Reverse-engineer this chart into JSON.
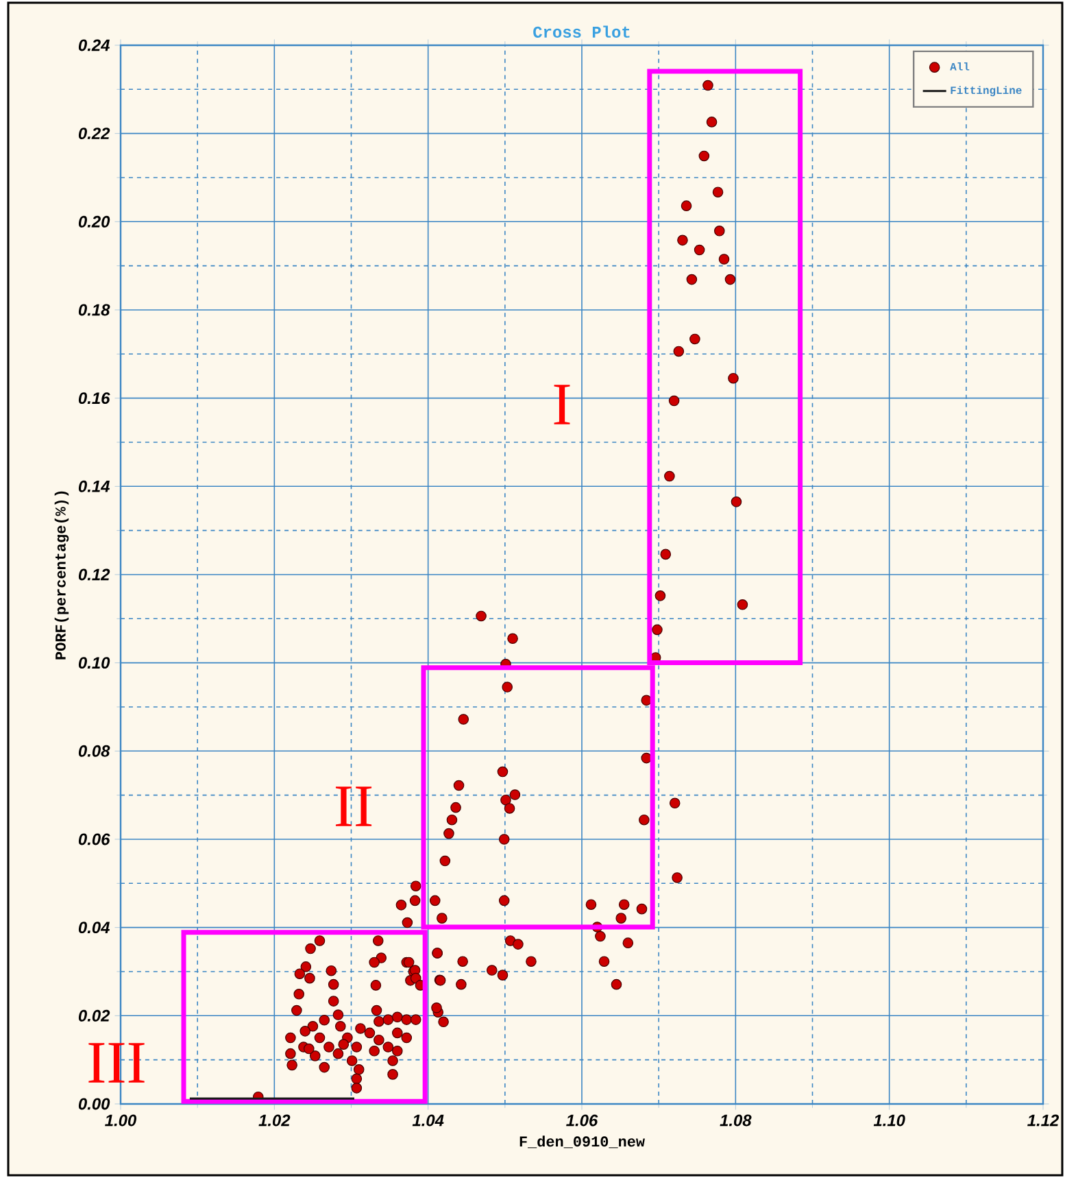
{
  "chart_data": {
    "type": "scatter",
    "title": "Cross Plot",
    "xlabel": "F_den_0910_new",
    "ylabel": "PORF(percentage(%))",
    "xlim": [
      1.0,
      1.12
    ],
    "ylim": [
      0.0,
      0.24
    ],
    "xticks": [
      {
        "value": 1.0,
        "label": "1.00"
      },
      {
        "value": 1.01,
        "label": null
      },
      {
        "value": 1.02,
        "label": "1.02"
      },
      {
        "value": 1.03,
        "label": null
      },
      {
        "value": 1.04,
        "label": "1.04"
      },
      {
        "value": 1.05,
        "label": null
      },
      {
        "value": 1.06,
        "label": "1.06"
      },
      {
        "value": 1.07,
        "label": null
      },
      {
        "value": 1.08,
        "label": "1.08"
      },
      {
        "value": 1.09,
        "label": null
      },
      {
        "value": 1.1,
        "label": "1.10"
      },
      {
        "value": 1.11,
        "label": null
      },
      {
        "value": 1.12,
        "label": "1.12"
      }
    ],
    "yticks": [
      {
        "value": 0.0,
        "label": "0.00"
      },
      {
        "value": 0.01,
        "label": null
      },
      {
        "value": 0.02,
        "label": "0.02"
      },
      {
        "value": 0.03,
        "label": null
      },
      {
        "value": 0.04,
        "label": "0.04"
      },
      {
        "value": 0.05,
        "label": null
      },
      {
        "value": 0.06,
        "label": "0.06"
      },
      {
        "value": 0.07,
        "label": null
      },
      {
        "value": 0.08,
        "label": "0.08"
      },
      {
        "value": 0.09,
        "label": null
      },
      {
        "value": 0.1,
        "label": "0.10"
      },
      {
        "value": 0.11,
        "label": null
      },
      {
        "value": 0.12,
        "label": "0.12"
      },
      {
        "value": 0.13,
        "label": null
      },
      {
        "value": 0.14,
        "label": "0.14"
      },
      {
        "value": 0.15,
        "label": null
      },
      {
        "value": 0.16,
        "label": "0.16"
      },
      {
        "value": 0.17,
        "label": null
      },
      {
        "value": 0.18,
        "label": "0.18"
      },
      {
        "value": 0.19,
        "label": null
      },
      {
        "value": 0.2,
        "label": "0.20"
      },
      {
        "value": 0.21,
        "label": null
      },
      {
        "value": 0.22,
        "label": "0.22"
      },
      {
        "value": 0.23,
        "label": null
      },
      {
        "value": 0.24,
        "label": "0.24"
      }
    ],
    "grid": true,
    "legend": "top right",
    "line_style": "solid",
    "series": [
      {
        "name": "All",
        "marker": "circle",
        "color": "#cc0000",
        "x": [
          1.0764,
          1.0769,
          1.0759,
          1.0777,
          1.0736,
          1.0779,
          1.0731,
          1.0753,
          1.0785,
          1.0743,
          1.0793,
          1.0747,
          1.0726,
          1.0797,
          1.072,
          1.0714,
          1.0801,
          1.0709,
          1.0702,
          1.0809,
          1.0698,
          1.0469,
          1.051,
          1.0696,
          1.0501,
          1.0503,
          1.0446,
          1.0684,
          1.0684,
          1.0497,
          1.044,
          1.0513,
          1.0501,
          1.0506,
          1.0436,
          1.0431,
          1.0721,
          1.0681,
          1.0427,
          1.0499,
          1.0422,
          1.0724,
          1.0384,
          1.0499,
          1.0409,
          1.0383,
          1.0365,
          1.0418,
          1.0373,
          1.0612,
          1.0655,
          1.0678,
          1.0651,
          1.062,
          1.0624,
          1.066,
          1.0507,
          1.0517,
          1.0412,
          1.0534,
          1.0629,
          1.0445,
          1.0483,
          1.0497,
          1.0645,
          1.0415,
          1.0443,
          1.0372,
          1.0381,
          1.0377,
          1.042,
          1.0413,
          1.0259,
          1.0247,
          1.0335,
          1.0339,
          1.033,
          1.0375,
          1.0412,
          1.0241,
          1.0274,
          1.0233,
          1.0246,
          1.0383,
          1.0384,
          1.0416,
          1.0277,
          1.0332,
          1.0232,
          1.0277,
          1.039,
          1.0229,
          1.0333,
          1.0283,
          1.0411,
          1.0336,
          1.0348,
          1.036,
          1.0372,
          1.0384,
          1.025,
          1.0286,
          1.0312,
          1.0324,
          1.036,
          1.0221,
          1.0259,
          1.0295,
          1.0336,
          1.0372,
          1.0238,
          1.0271,
          1.0307,
          1.0348,
          1.0221,
          1.0253,
          1.0283,
          1.0301,
          1.0354,
          1.0223,
          1.0265,
          1.031,
          1.0354,
          1.0307,
          1.0307,
          1.0179,
          1.0245,
          1.029,
          1.033,
          1.0265,
          1.024,
          1.036
        ],
        "values": [
          0.2309,
          0.2226,
          0.2149,
          0.2067,
          0.2036,
          0.1979,
          0.1958,
          0.1936,
          0.1915,
          0.1869,
          0.1869,
          0.1734,
          0.1706,
          0.1645,
          0.1594,
          0.1423,
          0.1365,
          0.1246,
          0.1152,
          0.1132,
          0.1075,
          0.1106,
          0.1055,
          0.1012,
          0.0997,
          0.0945,
          0.0872,
          0.0915,
          0.0784,
          0.0753,
          0.0722,
          0.0701,
          0.0689,
          0.067,
          0.0672,
          0.0644,
          0.0682,
          0.0644,
          0.0613,
          0.06,
          0.0551,
          0.0513,
          0.0494,
          0.0461,
          0.0461,
          0.0461,
          0.0451,
          0.0421,
          0.0411,
          0.0452,
          0.0452,
          0.0442,
          0.0421,
          0.0401,
          0.038,
          0.0365,
          0.037,
          0.0362,
          0.0342,
          0.0323,
          0.0323,
          0.0323,
          0.0303,
          0.0292,
          0.0271,
          0.0281,
          0.0271,
          0.0321,
          0.03,
          0.028,
          0.0186,
          0.0208,
          0.037,
          0.0352,
          0.037,
          0.0331,
          0.0321,
          0.0321,
          0.0342,
          0.0311,
          0.0302,
          0.0295,
          0.0285,
          0.0303,
          0.0285,
          0.028,
          0.0271,
          0.0269,
          0.0249,
          0.0233,
          0.0269,
          0.0212,
          0.0212,
          0.0202,
          0.0218,
          0.0187,
          0.0191,
          0.0197,
          0.0191,
          0.0191,
          0.0176,
          0.0176,
          0.0171,
          0.0161,
          0.0161,
          0.015,
          0.015,
          0.015,
          0.0145,
          0.015,
          0.0129,
          0.0129,
          0.0129,
          0.0129,
          0.0114,
          0.0109,
          0.0114,
          0.0098,
          0.0098,
          0.0088,
          0.0083,
          0.0078,
          0.0067,
          0.0057,
          0.0036,
          0.0016,
          0.0125,
          0.0135,
          0.012,
          0.019,
          0.0165,
          0.012
        ]
      },
      {
        "name": "FittingLine",
        "type": "line",
        "marker": "none",
        "color": "#1a1a1a",
        "x": [
          1.009,
          1.0304
        ],
        "values": [
          0.0012,
          0.0012
        ]
      }
    ],
    "annotations": [
      "I",
      "II",
      "III"
    ]
  }
}
